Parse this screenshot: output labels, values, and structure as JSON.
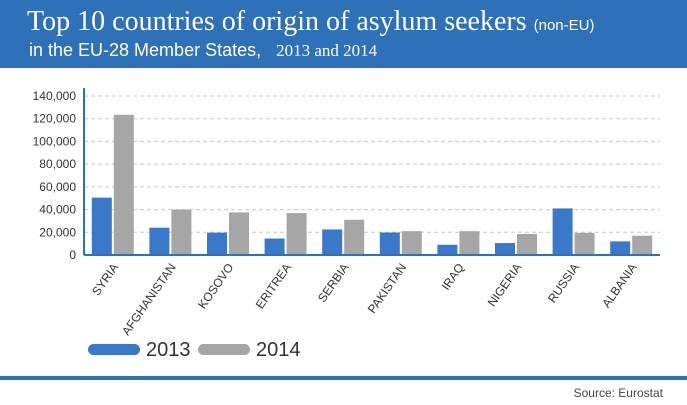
{
  "header": {
    "title_main": "Top 10 countries of origin of asylum seekers",
    "title_qualifier": "(non-EU)",
    "subtitle": "in the EU-28 Member States,",
    "years": "2013 and 2014"
  },
  "source": "Source: Eurostat",
  "colors": {
    "header_bg": "#2f71b8",
    "series_2013": "#3a78c9",
    "series_2014": "#a6a6a6"
  },
  "chart_data": {
    "type": "bar",
    "title": "Top 10 countries of origin of asylum seekers (non-EU) in the EU-28 Member States, 2013 and 2014",
    "xlabel": "",
    "ylabel": "",
    "categories": [
      "SYRIA",
      "AFGHANISTAN",
      "KOSOVO",
      "ERITREA",
      "SERBIA",
      "PAKISTAN",
      "IRAQ",
      "NIGERIA",
      "RUSSIA",
      "ALBANIA"
    ],
    "series": [
      {
        "name": "2013",
        "values": [
          50500,
          24000,
          19700,
          14500,
          22500,
          19800,
          9000,
          10500,
          41000,
          12000
        ]
      },
      {
        "name": "2014",
        "values": [
          123500,
          40000,
          37500,
          37000,
          31000,
          21000,
          21000,
          18500,
          19500,
          17000
        ]
      }
    ],
    "ylim": [
      0,
      140000
    ],
    "yticks": [
      0,
      20000,
      40000,
      60000,
      80000,
      100000,
      120000,
      140000
    ],
    "ytick_labels": [
      "0",
      "20,000",
      "40,000",
      "60,000",
      "80,000",
      "100,000",
      "120,000",
      "140,000"
    ],
    "grid": true,
    "legend_position": "bottom-left"
  }
}
